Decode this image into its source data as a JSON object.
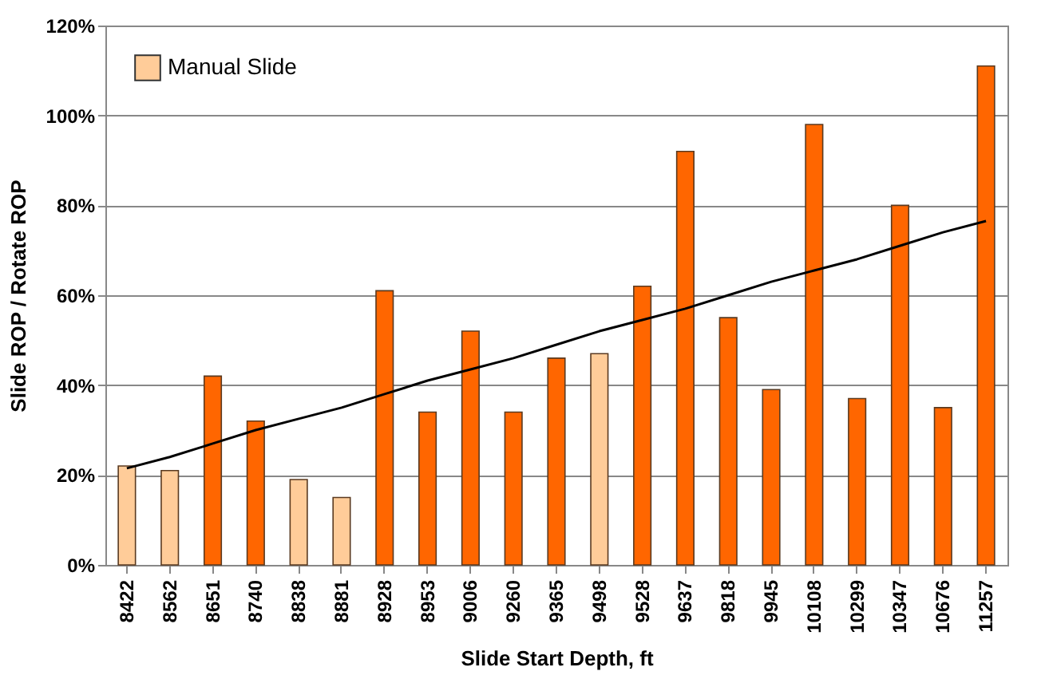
{
  "chart_data": {
    "type": "bar",
    "xlabel": "Slide Start Depth, ft",
    "ylabel": "Slide ROP / Rotate ROP",
    "categories": [
      "8422",
      "8562",
      "8651",
      "8740",
      "8838",
      "8881",
      "8928",
      "8953",
      "9006",
      "9260",
      "9365",
      "9498",
      "9528",
      "9637",
      "9818",
      "9945",
      "10108",
      "10299",
      "10347",
      "10676",
      "11257"
    ],
    "series": [
      {
        "color": "#ff6600",
        "values": [
          null,
          null,
          42,
          32,
          null,
          null,
          61,
          34,
          52,
          34,
          46,
          null,
          62,
          92,
          55,
          39,
          98,
          37,
          80,
          35,
          111
        ]
      },
      {
        "name": "Manual Slide",
        "color": "#ffcc99",
        "values": [
          22,
          21,
          null,
          null,
          19,
          15,
          null,
          null,
          null,
          null,
          null,
          47,
          null,
          null,
          null,
          null,
          null,
          null,
          null,
          null,
          null
        ]
      },
      {
        "type": "line",
        "color": "#000000",
        "values": [
          21.5,
          24,
          27,
          30,
          32.5,
          35,
          38,
          41,
          43.5,
          46,
          49,
          52,
          54.5,
          57,
          60,
          63,
          65.5,
          68,
          71,
          74,
          76.5
        ]
      }
    ],
    "ylim": [
      0,
      120
    ],
    "yticks": [
      {
        "value": 0,
        "label": "0%"
      },
      {
        "value": 20,
        "label": "20%"
      },
      {
        "value": 40,
        "label": "40%"
      },
      {
        "value": 60,
        "label": "60%"
      },
      {
        "value": 80,
        "label": "80%"
      },
      {
        "value": 100,
        "label": "100%"
      },
      {
        "value": 120,
        "label": "120%"
      }
    ],
    "grid": "y",
    "legend": "top left"
  }
}
